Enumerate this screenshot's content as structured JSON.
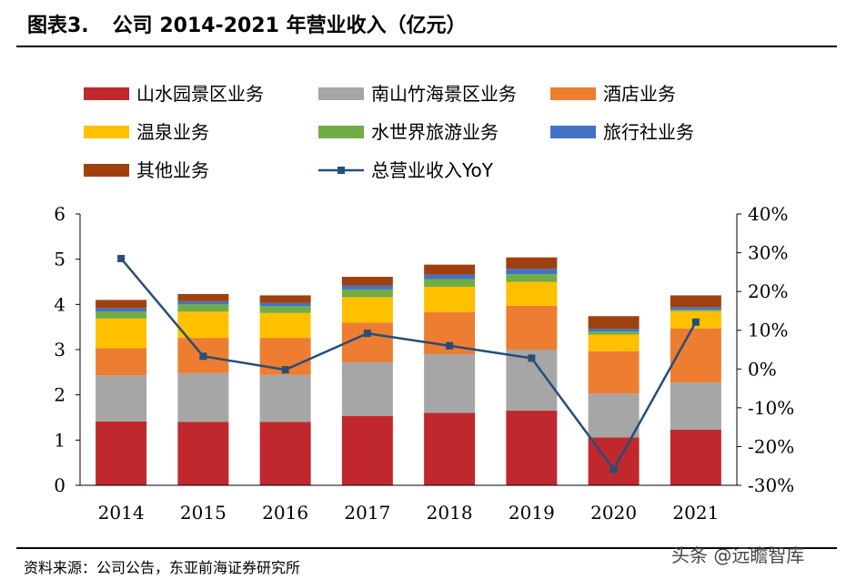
{
  "header": {
    "label": "图表3.",
    "title": "公司 2014-2021 年营业收入（亿元）"
  },
  "footer": {
    "source": "资料来源：公司公告，东亚前海证券研究所",
    "watermark": "头条 @远瞻智库"
  },
  "colors": {
    "shanshui": "#C0282E",
    "nanshan": "#A6A6A6",
    "hotel": "#ED7D31",
    "hotspring": "#FFC000",
    "waterworld": "#70AD47",
    "travel": "#4472C4",
    "other": "#A0400E",
    "yoy": "#264E79"
  },
  "chart_data": {
    "type": "bar",
    "stacked": true,
    "categories": [
      "2014",
      "2015",
      "2016",
      "2017",
      "2018",
      "2019",
      "2020",
      "2021"
    ],
    "series": [
      {
        "name": "山水园景区业务",
        "color": "#C0282E",
        "values": [
          1.41,
          1.4,
          1.4,
          1.53,
          1.6,
          1.65,
          1.06,
          1.23
        ]
      },
      {
        "name": "南山竹海景区业务",
        "color": "#A6A6A6",
        "values": [
          1.02,
          1.08,
          1.04,
          1.19,
          1.3,
          1.35,
          0.97,
          1.04
        ]
      },
      {
        "name": "酒店业务",
        "color": "#ED7D31",
        "values": [
          0.6,
          0.78,
          0.82,
          0.88,
          0.93,
          0.97,
          0.93,
          1.2
        ]
      },
      {
        "name": "温泉业务",
        "color": "#FFC000",
        "values": [
          0.66,
          0.58,
          0.55,
          0.56,
          0.56,
          0.53,
          0.37,
          0.38
        ]
      },
      {
        "name": "水世界旅游业务",
        "color": "#70AD47",
        "values": [
          0.15,
          0.16,
          0.15,
          0.17,
          0.17,
          0.17,
          0.07,
          0.03
        ]
      },
      {
        "name": "旅行社业务",
        "color": "#4472C4",
        "values": [
          0.08,
          0.07,
          0.07,
          0.09,
          0.1,
          0.12,
          0.06,
          0.06
        ]
      },
      {
        "name": "其他业务",
        "color": "#A0400E",
        "values": [
          0.18,
          0.16,
          0.17,
          0.19,
          0.22,
          0.25,
          0.28,
          0.26
        ]
      }
    ],
    "line_series": {
      "name": "总营业收入YoY",
      "color": "#264E79",
      "axis": "right",
      "values": [
        0.285,
        0.033,
        -0.002,
        0.092,
        0.06,
        0.028,
        -0.259,
        0.121
      ]
    },
    "y_left": {
      "min": 0,
      "max": 6,
      "ticks": [
        "0",
        "1",
        "2",
        "3",
        "4",
        "5",
        "6"
      ]
    },
    "y_right": {
      "min": -0.3,
      "max": 0.4,
      "ticks": [
        "-30%",
        "-20%",
        "-10%",
        "0%",
        "10%",
        "20%",
        "30%",
        "40%"
      ]
    },
    "legend_placement": "top",
    "grid": false
  }
}
